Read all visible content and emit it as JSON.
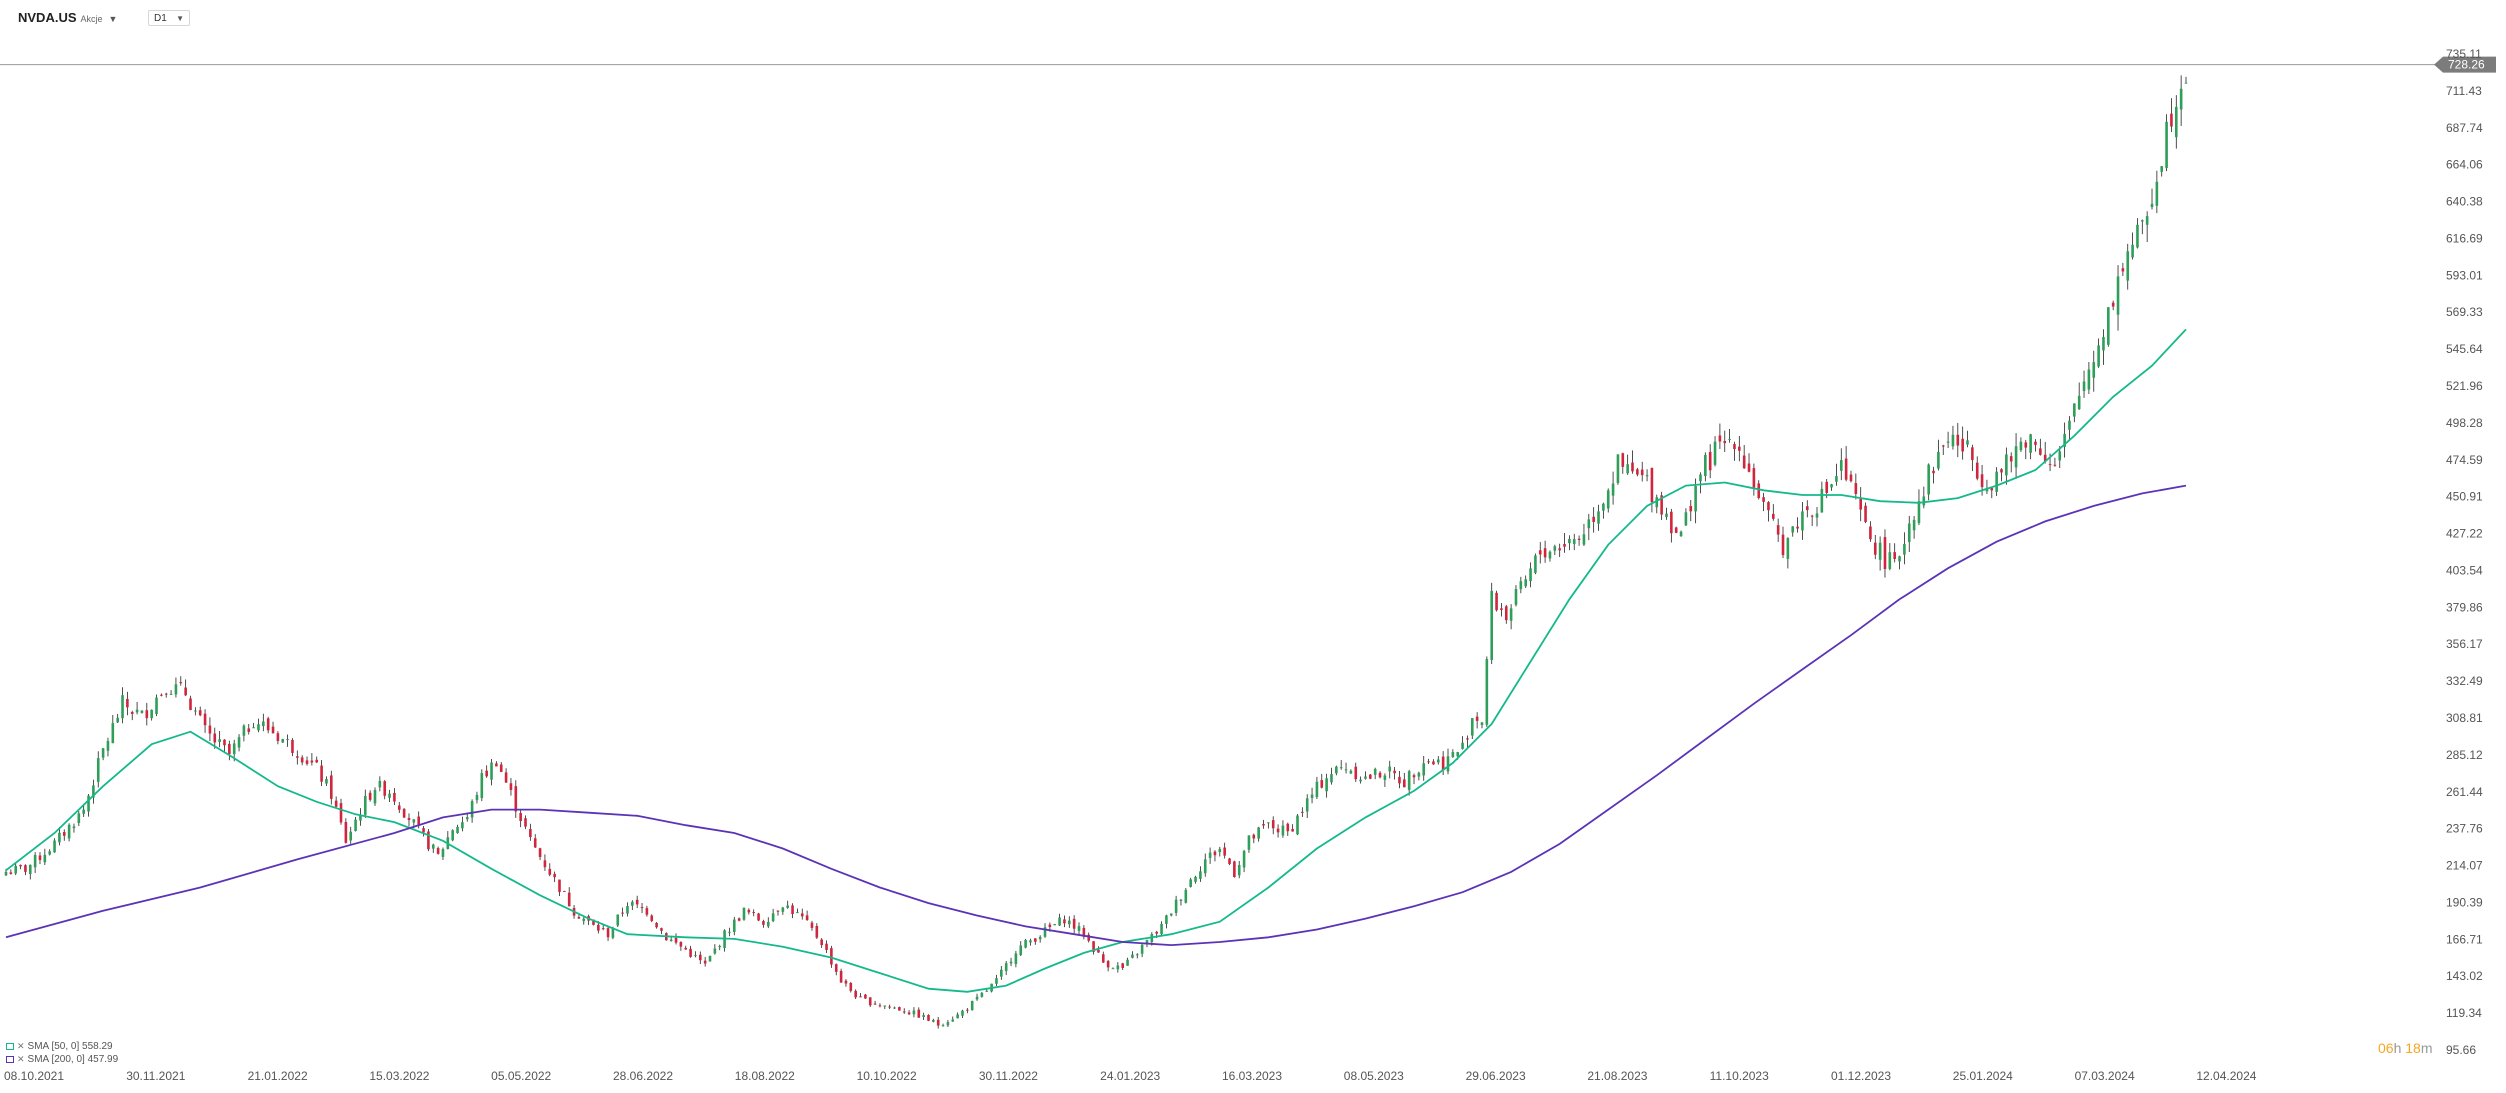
{
  "header": {
    "symbol": "NVDA.US",
    "symbol_type": "Akcje",
    "interval": "D1"
  },
  "indicators": [
    {
      "label": "SMA [50, 0] 558.29",
      "color": "#14b98b"
    },
    {
      "label": "SMA [200, 0] 457.99",
      "color": "#5b33b6"
    }
  ],
  "countdown": {
    "hours": "06",
    "h_unit": "h",
    "minutes": "18",
    "m_unit": "m"
  },
  "price_tag": "728.26",
  "colors": {
    "up": "#2e9e59",
    "down": "#d0253d",
    "sma50": "#14b98b",
    "sma200": "#5b33b6",
    "grid_text": "#555555"
  },
  "chart_data": {
    "type": "candlestick",
    "y_ticks": [
      "735.11",
      "711.43",
      "687.74",
      "664.06",
      "640.38",
      "616.69",
      "593.01",
      "569.33",
      "545.64",
      "521.96",
      "498.28",
      "474.59",
      "450.91",
      "427.22",
      "403.54",
      "379.86",
      "356.17",
      "332.49",
      "308.81",
      "285.12",
      "261.44",
      "237.76",
      "214.07",
      "190.39",
      "166.71",
      "143.02",
      "119.34",
      "95.66"
    ],
    "x_ticks": [
      "08.10.2021",
      "30.11.2021",
      "21.01.2022",
      "15.03.2022",
      "05.05.2022",
      "28.06.2022",
      "18.08.2022",
      "10.10.2022",
      "30.11.2022",
      "24.01.2023",
      "16.03.2023",
      "08.05.2023",
      "29.06.2023",
      "21.08.2023",
      "11.10.2023",
      "01.12.2023",
      "25.01.2024",
      "07.03.2024",
      "12.04.2024"
    ],
    "ylim": [
      95.66,
      735.11
    ],
    "current_price": 728.26,
    "close_path": [
      [
        0,
        210
      ],
      [
        4,
        212
      ],
      [
        10,
        228
      ],
      [
        16,
        250
      ],
      [
        20,
        288
      ],
      [
        24,
        318
      ],
      [
        28,
        310
      ],
      [
        33,
        330
      ],
      [
        37,
        325
      ],
      [
        41,
        300
      ],
      [
        46,
        285
      ],
      [
        51,
        308
      ],
      [
        55,
        300
      ],
      [
        60,
        288
      ],
      [
        64,
        276
      ],
      [
        67,
        260
      ],
      [
        70,
        230
      ],
      [
        73,
        250
      ],
      [
        76,
        265
      ],
      [
        79,
        262
      ],
      [
        83,
        245
      ],
      [
        86,
        232
      ],
      [
        89,
        220
      ],
      [
        92,
        238
      ],
      [
        95,
        245
      ],
      [
        98,
        270
      ],
      [
        101,
        282
      ],
      [
        104,
        260
      ],
      [
        108,
        230
      ],
      [
        112,
        210
      ],
      [
        117,
        185
      ],
      [
        121,
        175
      ],
      [
        124,
        170
      ],
      [
        128,
        190
      ],
      [
        132,
        185
      ],
      [
        136,
        168
      ],
      [
        140,
        160
      ],
      [
        144,
        150
      ],
      [
        148,
        170
      ],
      [
        152,
        185
      ],
      [
        156,
        178
      ],
      [
        160,
        190
      ],
      [
        164,
        180
      ],
      [
        168,
        165
      ],
      [
        172,
        140
      ],
      [
        176,
        128
      ],
      [
        180,
        125
      ],
      [
        184,
        122
      ],
      [
        188,
        118
      ],
      [
        192,
        112
      ],
      [
        196,
        118
      ],
      [
        200,
        128
      ],
      [
        204,
        140
      ],
      [
        208,
        160
      ],
      [
        213,
        170
      ],
      [
        218,
        180
      ],
      [
        222,
        170
      ],
      [
        226,
        152
      ],
      [
        230,
        148
      ],
      [
        234,
        162
      ],
      [
        238,
        175
      ],
      [
        241,
        190
      ],
      [
        244,
        205
      ],
      [
        247,
        218
      ],
      [
        250,
        225
      ],
      [
        253,
        210
      ],
      [
        256,
        230
      ],
      [
        260,
        240
      ],
      [
        264,
        235
      ],
      [
        268,
        255
      ],
      [
        272,
        272
      ],
      [
        276,
        278
      ],
      [
        280,
        270
      ],
      [
        284,
        275
      ],
      [
        288,
        268
      ],
      [
        292,
        282
      ],
      [
        296,
        280
      ],
      [
        300,
        290
      ],
      [
        302,
        310
      ],
      [
        304,
        308
      ],
      [
        306,
        385
      ],
      [
        309,
        375
      ],
      [
        312,
        390
      ],
      [
        316,
        415
      ],
      [
        320,
        420
      ],
      [
        324,
        425
      ],
      [
        328,
        445
      ],
      [
        332,
        470
      ],
      [
        335,
        465
      ],
      [
        338,
        460
      ],
      [
        342,
        440
      ],
      [
        345,
        425
      ],
      [
        348,
        460
      ],
      [
        352,
        480
      ],
      [
        356,
        490
      ],
      [
        360,
        460
      ],
      [
        363,
        435
      ],
      [
        366,
        420
      ],
      [
        370,
        440
      ],
      [
        374,
        450
      ],
      [
        378,
        470
      ],
      [
        380,
        455
      ],
      [
        383,
        430
      ],
      [
        386,
        415
      ],
      [
        389,
        405
      ],
      [
        392,
        435
      ],
      [
        396,
        465
      ],
      [
        400,
        490
      ],
      [
        404,
        480
      ],
      [
        408,
        460
      ],
      [
        412,
        470
      ],
      [
        416,
        490
      ],
      [
        420,
        480
      ],
      [
        422,
        470
      ],
      [
        425,
        495
      ],
      [
        428,
        525
      ],
      [
        431,
        550
      ],
      [
        434,
        580
      ],
      [
        437,
        610
      ],
      [
        440,
        620
      ],
      [
        443,
        660
      ],
      [
        446,
        700
      ],
      [
        448,
        720
      ],
      [
        449,
        728.26
      ]
    ],
    "series": [
      {
        "name": "SMA [50, 0] 558.29",
        "values": [
          [
            0,
            211
          ],
          [
            10,
            235
          ],
          [
            20,
            265
          ],
          [
            30,
            292
          ],
          [
            38,
            300
          ],
          [
            46,
            285
          ],
          [
            56,
            265
          ],
          [
            64,
            255
          ],
          [
            72,
            247
          ],
          [
            80,
            242
          ],
          [
            90,
            230
          ],
          [
            100,
            212
          ],
          [
            110,
            195
          ],
          [
            120,
            180
          ],
          [
            128,
            170
          ],
          [
            140,
            168
          ],
          [
            150,
            167
          ],
          [
            160,
            162
          ],
          [
            170,
            155
          ],
          [
            180,
            145
          ],
          [
            190,
            135
          ],
          [
            198,
            133
          ],
          [
            206,
            137
          ],
          [
            214,
            148
          ],
          [
            222,
            158
          ],
          [
            230,
            165
          ],
          [
            240,
            170
          ],
          [
            250,
            178
          ],
          [
            260,
            200
          ],
          [
            270,
            225
          ],
          [
            280,
            245
          ],
          [
            290,
            262
          ],
          [
            298,
            280
          ],
          [
            306,
            305
          ],
          [
            314,
            345
          ],
          [
            322,
            385
          ],
          [
            330,
            420
          ],
          [
            338,
            445
          ],
          [
            346,
            458
          ],
          [
            354,
            460
          ],
          [
            362,
            455
          ],
          [
            370,
            452
          ],
          [
            378,
            452
          ],
          [
            386,
            448
          ],
          [
            394,
            447
          ],
          [
            402,
            450
          ],
          [
            410,
            458
          ],
          [
            418,
            468
          ],
          [
            426,
            490
          ],
          [
            434,
            515
          ],
          [
            442,
            535
          ],
          [
            449,
            558.29
          ]
        ]
      },
      {
        "name": "SMA [200, 0] 457.99",
        "values": [
          [
            0,
            168
          ],
          [
            20,
            185
          ],
          [
            40,
            200
          ],
          [
            60,
            218
          ],
          [
            80,
            235
          ],
          [
            90,
            245
          ],
          [
            100,
            250
          ],
          [
            110,
            250
          ],
          [
            120,
            248
          ],
          [
            130,
            246
          ],
          [
            140,
            240
          ],
          [
            150,
            235
          ],
          [
            160,
            225
          ],
          [
            170,
            212
          ],
          [
            180,
            200
          ],
          [
            190,
            190
          ],
          [
            200,
            182
          ],
          [
            210,
            175
          ],
          [
            220,
            170
          ],
          [
            230,
            165
          ],
          [
            240,
            163
          ],
          [
            250,
            165
          ],
          [
            260,
            168
          ],
          [
            270,
            173
          ],
          [
            280,
            180
          ],
          [
            290,
            188
          ],
          [
            300,
            197
          ],
          [
            310,
            210
          ],
          [
            320,
            228
          ],
          [
            330,
            250
          ],
          [
            340,
            272
          ],
          [
            350,
            295
          ],
          [
            360,
            318
          ],
          [
            370,
            340
          ],
          [
            380,
            362
          ],
          [
            390,
            385
          ],
          [
            400,
            405
          ],
          [
            410,
            422
          ],
          [
            420,
            435
          ],
          [
            430,
            445
          ],
          [
            440,
            453
          ],
          [
            449,
            457.99
          ]
        ]
      }
    ]
  }
}
